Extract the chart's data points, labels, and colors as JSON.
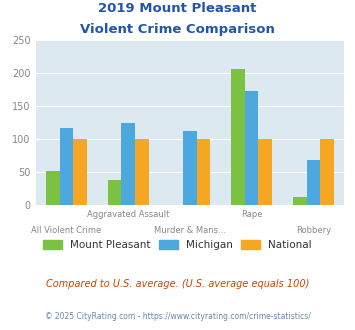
{
  "title_line1": "2019 Mount Pleasant",
  "title_line2": "Violent Crime Comparison",
  "categories": [
    "All Violent Crime",
    "Aggravated Assault",
    "Murder & Mans...",
    "Rape",
    "Robbery"
  ],
  "top_labels": [
    "",
    "Aggravated Assault",
    "",
    "Rape",
    ""
  ],
  "bottom_labels": [
    "All Violent Crime",
    "",
    "Murder & Mans...",
    "",
    "Robbery"
  ],
  "series": {
    "Mount Pleasant": [
      51,
      38,
      0,
      205,
      11
    ],
    "Michigan": [
      116,
      123,
      112,
      172,
      67
    ],
    "National": [
      100,
      100,
      100,
      100,
      100
    ]
  },
  "colors": {
    "Mount Pleasant": "#7BC142",
    "Michigan": "#4EA8E0",
    "National": "#F5A623"
  },
  "ylim": [
    0,
    250
  ],
  "yticks": [
    0,
    50,
    100,
    150,
    200,
    250
  ],
  "bar_width": 0.22,
  "plot_bg": "#dce9f0",
  "title_color": "#2255aa",
  "footer_text": "Compared to U.S. average. (U.S. average equals 100)",
  "footer_color": "#cc4400",
  "copyright_text": "© 2025 CityRating.com - https://www.cityrating.com/crime-statistics/",
  "copyright_color": "#6688aa",
  "grid_color": "#ffffff",
  "tick_label_color": "#888888",
  "xlabel_top_color": "#888888",
  "xlabel_bot_color": "#888888"
}
